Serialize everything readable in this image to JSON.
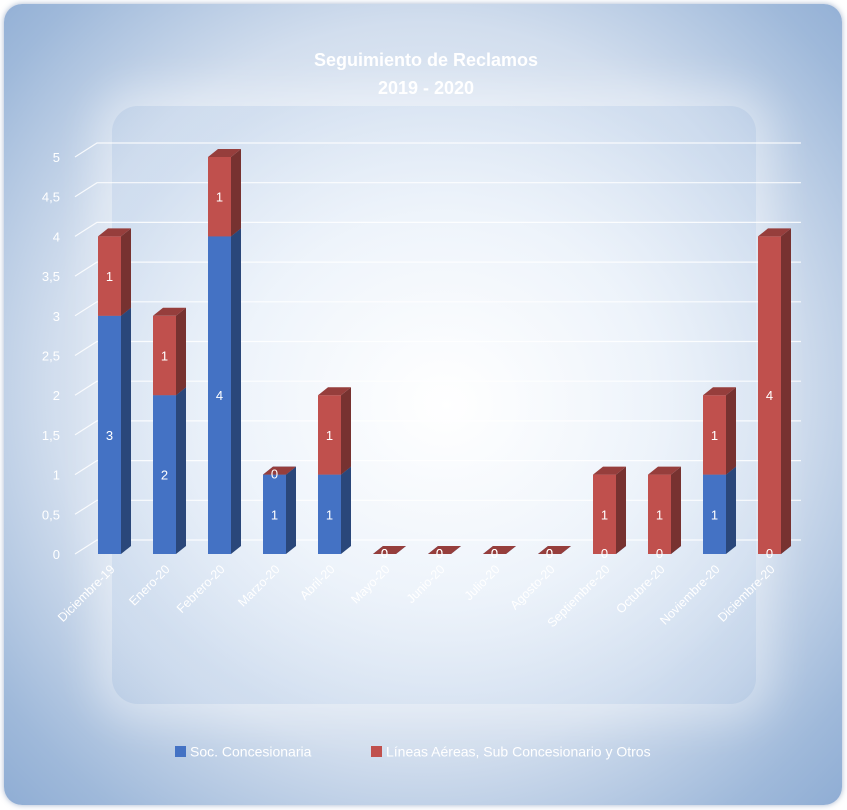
{
  "chart_data": {
    "type": "bar",
    "stacked": true,
    "three_d": true,
    "title": "Seguimiento de Reclamos",
    "subtitle": "2019 - 2020",
    "categories": [
      "Diciembre-19",
      "Enero-20",
      "Febrero-20",
      "Marzo-20",
      "Abril-20",
      "Mayo-20",
      "Junio-20",
      "Julio-20",
      "Agosto-20",
      "Septiembre-20",
      "Octubre-20",
      "Noviembre-20",
      "Diciembre-20"
    ],
    "series": [
      {
        "name": "Soc. Concesionaria",
        "color": "#4472c4",
        "values": [
          3,
          2,
          4,
          1,
          1,
          0,
          0,
          0,
          0,
          0,
          0,
          1,
          0
        ]
      },
      {
        "name": "Líneas Aéreas, Sub Concesionario y Otros",
        "color": "#c0504d",
        "values": [
          1,
          1,
          1,
          0,
          1,
          0,
          0,
          0,
          0,
          1,
          1,
          1,
          4
        ]
      }
    ],
    "ylim": [
      0,
      5
    ],
    "yticks": [
      "0",
      "0,5",
      "1",
      "1,5",
      "2",
      "2,5",
      "3",
      "3,5",
      "4",
      "4,5",
      "5"
    ],
    "grid": true,
    "legend_position": "bottom"
  }
}
